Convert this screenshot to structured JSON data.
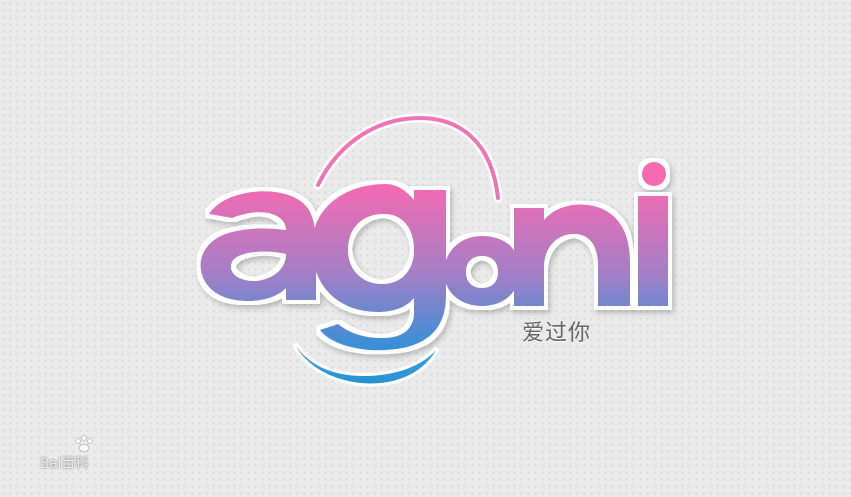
{
  "logo": {
    "wordmark": "agoni",
    "tagline": "爱过你",
    "gradient_top": "#f46bb1",
    "gradient_mid": "#b07bc1",
    "gradient_bottom": "#3b8fd6",
    "arc_color": "#ee74b5",
    "smile_color": "#2c97d4"
  },
  "watermark": {
    "text": "Bai百科",
    "paw_icon": "paw-icon"
  }
}
